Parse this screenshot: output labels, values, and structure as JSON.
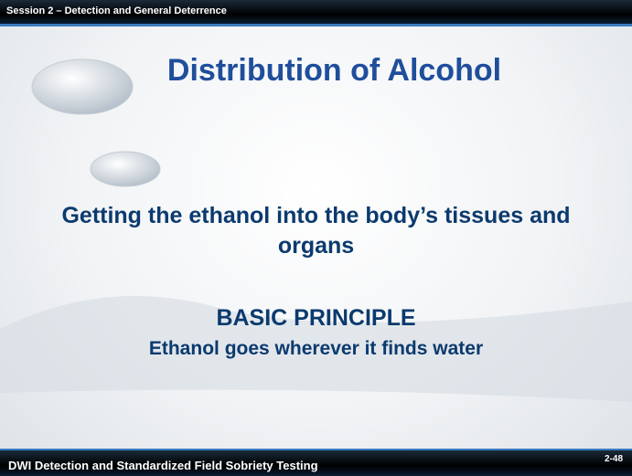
{
  "header": {
    "session": "Session 2 – Detection and General Deterrence"
  },
  "title": "Distribution of Alcohol",
  "subtitle": "Getting the ethanol into the body’s tissues and organs",
  "principle": {
    "heading": "BASIC PRINCIPLE",
    "text": "Ethanol goes wherever it finds water"
  },
  "footer": {
    "course": "DWI Detection and Standardized Field Sobriety Testing",
    "page": "2-48"
  }
}
